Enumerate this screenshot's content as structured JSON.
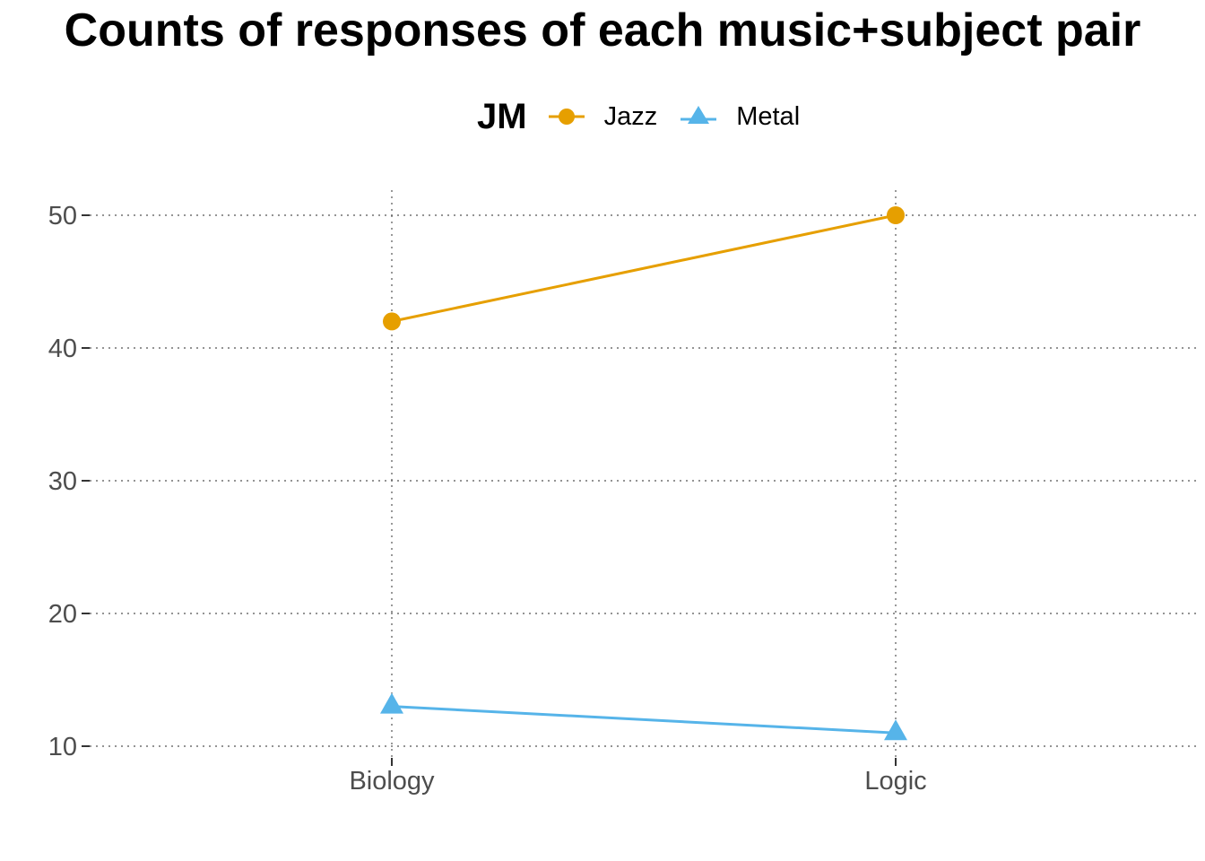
{
  "chart_data": {
    "type": "line",
    "title": "Counts of responses of each music+subject pair",
    "xlabel": "",
    "ylabel": "",
    "categories": [
      "Biology",
      "Logic"
    ],
    "ylim": [
      9.3,
      52
    ],
    "yticks": [
      10,
      20,
      30,
      40,
      50
    ],
    "grid": true,
    "legend": {
      "title": "JM",
      "placement": "top"
    },
    "series": [
      {
        "name": "Jazz",
        "values": [
          42,
          50
        ],
        "color": "#E69F00",
        "marker": "circle-icon"
      },
      {
        "name": "Metal",
        "values": [
          13,
          11
        ],
        "color": "#56B4E9",
        "marker": "triangle-icon"
      }
    ]
  }
}
